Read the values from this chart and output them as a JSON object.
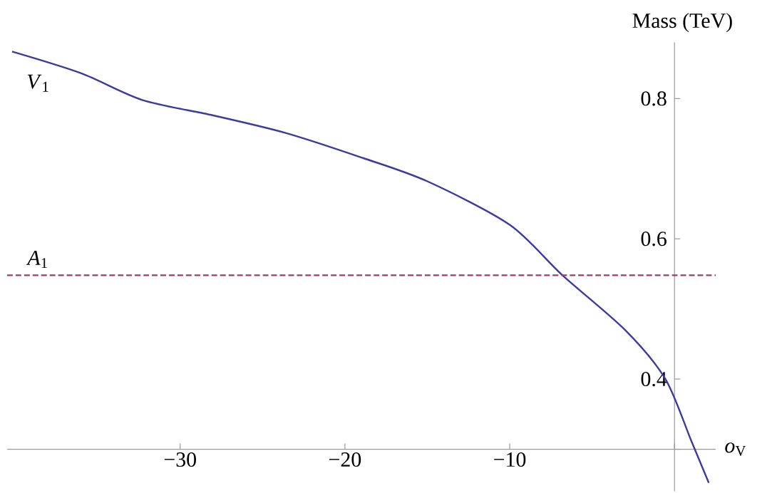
{
  "chart_data": {
    "type": "line",
    "xlabel": "*o*$_{V}$",
    "ylabel": "Mass (TeV)",
    "xlim": [
      -40.5,
      2.5
    ],
    "ylim": [
      0.24,
      0.88
    ],
    "xticks": [
      {
        "value": -30,
        "label": "−30"
      },
      {
        "value": -20,
        "label": "−20"
      },
      {
        "value": -10,
        "label": "−10"
      },
      {
        "value": 0,
        "label": null
      }
    ],
    "yticks": [
      {
        "value": 0.3,
        "label": null
      },
      0.4,
      0.6,
      0.8
    ],
    "series": [
      {
        "name": "*V*$_{1}$",
        "color": "#3b3ba0",
        "line_style": "solid",
        "x": [
          -40.2,
          -36,
          -32.3,
          -28,
          -23.6,
          -19,
          -15,
          -10,
          -6.8,
          -3,
          -0.55,
          1,
          2.08
        ],
        "values": [
          0.867,
          0.836,
          0.798,
          0.776,
          0.751,
          0.716,
          0.682,
          0.62,
          0.548,
          0.47,
          0.4,
          0.313,
          0.252
        ]
      },
      {
        "name": "*A*$_{1}$",
        "color": "#9e3a6e",
        "line_style": "dashed",
        "x": [
          -40.5,
          2.5
        ],
        "values": [
          0.548,
          0.548
        ]
      }
    ]
  }
}
